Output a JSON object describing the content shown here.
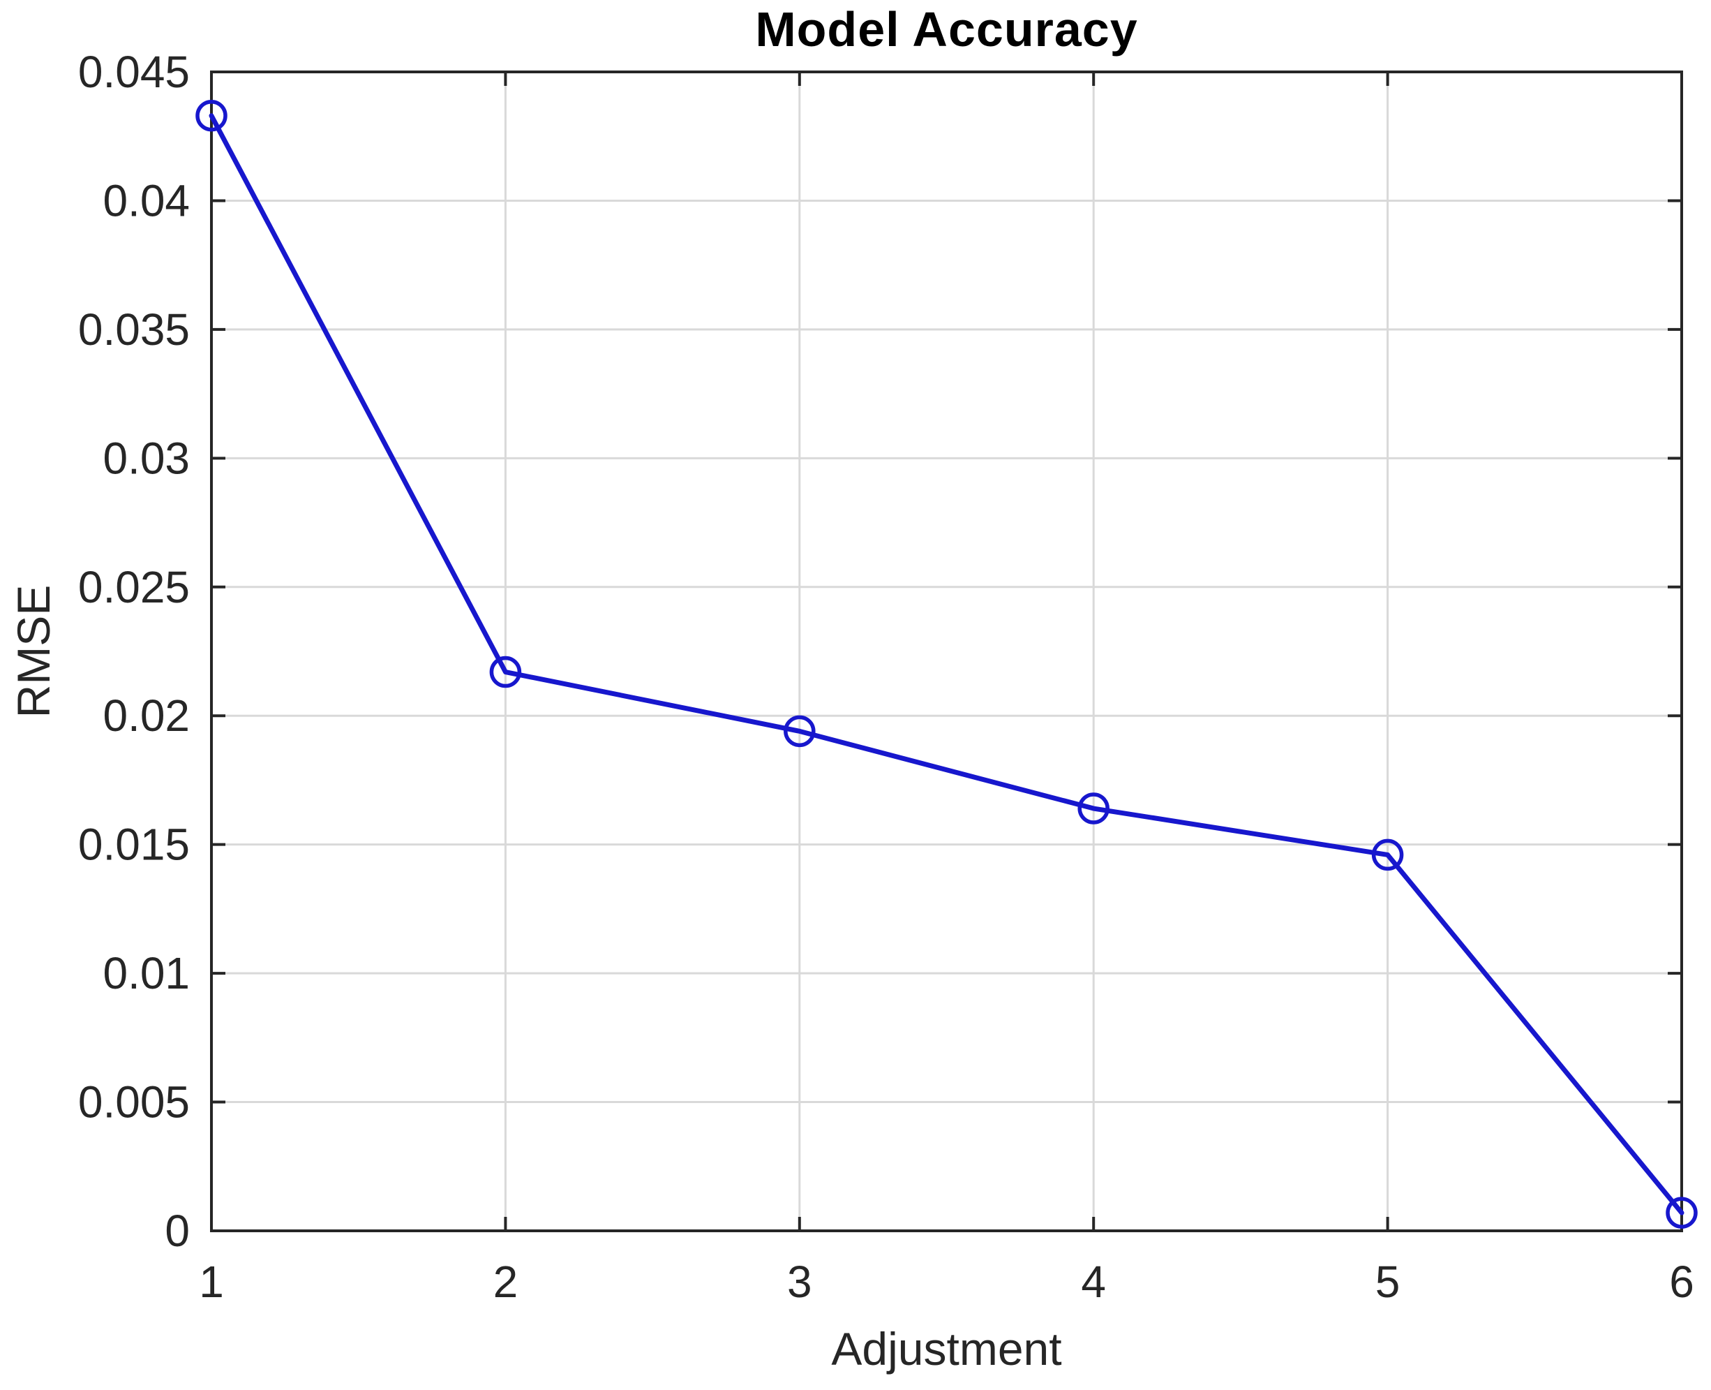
{
  "chart_data": {
    "type": "line",
    "title": "Model Accuracy",
    "xlabel": "Adjustment",
    "ylabel": "RMSE",
    "x": [
      1,
      2,
      3,
      4,
      5,
      6
    ],
    "y": [
      0.0433,
      0.0217,
      0.0194,
      0.0164,
      0.0146,
      0.0007
    ],
    "xlim": [
      1,
      6
    ],
    "ylim": [
      0,
      0.045
    ],
    "xticks": {
      "values": [
        1,
        2,
        3,
        4,
        5,
        6
      ],
      "labels": [
        "1",
        "2",
        "3",
        "4",
        "5",
        "6"
      ]
    },
    "yticks": {
      "values": [
        0,
        0.005,
        0.01,
        0.015,
        0.02,
        0.025,
        0.03,
        0.035,
        0.04,
        0.045
      ],
      "labels": [
        "0",
        "0.005",
        "0.01",
        "0.015",
        "0.02",
        "0.025",
        "0.03",
        "0.035",
        "0.04",
        "0.045"
      ]
    },
    "grid": true,
    "legend_position": "none",
    "marker": "open-circle",
    "colors": {
      "line": "#1717cd",
      "grid": "#d9d9d9",
      "axis": "#262626",
      "text": "#262626",
      "title": "#000000",
      "background": "#ffffff"
    }
  }
}
